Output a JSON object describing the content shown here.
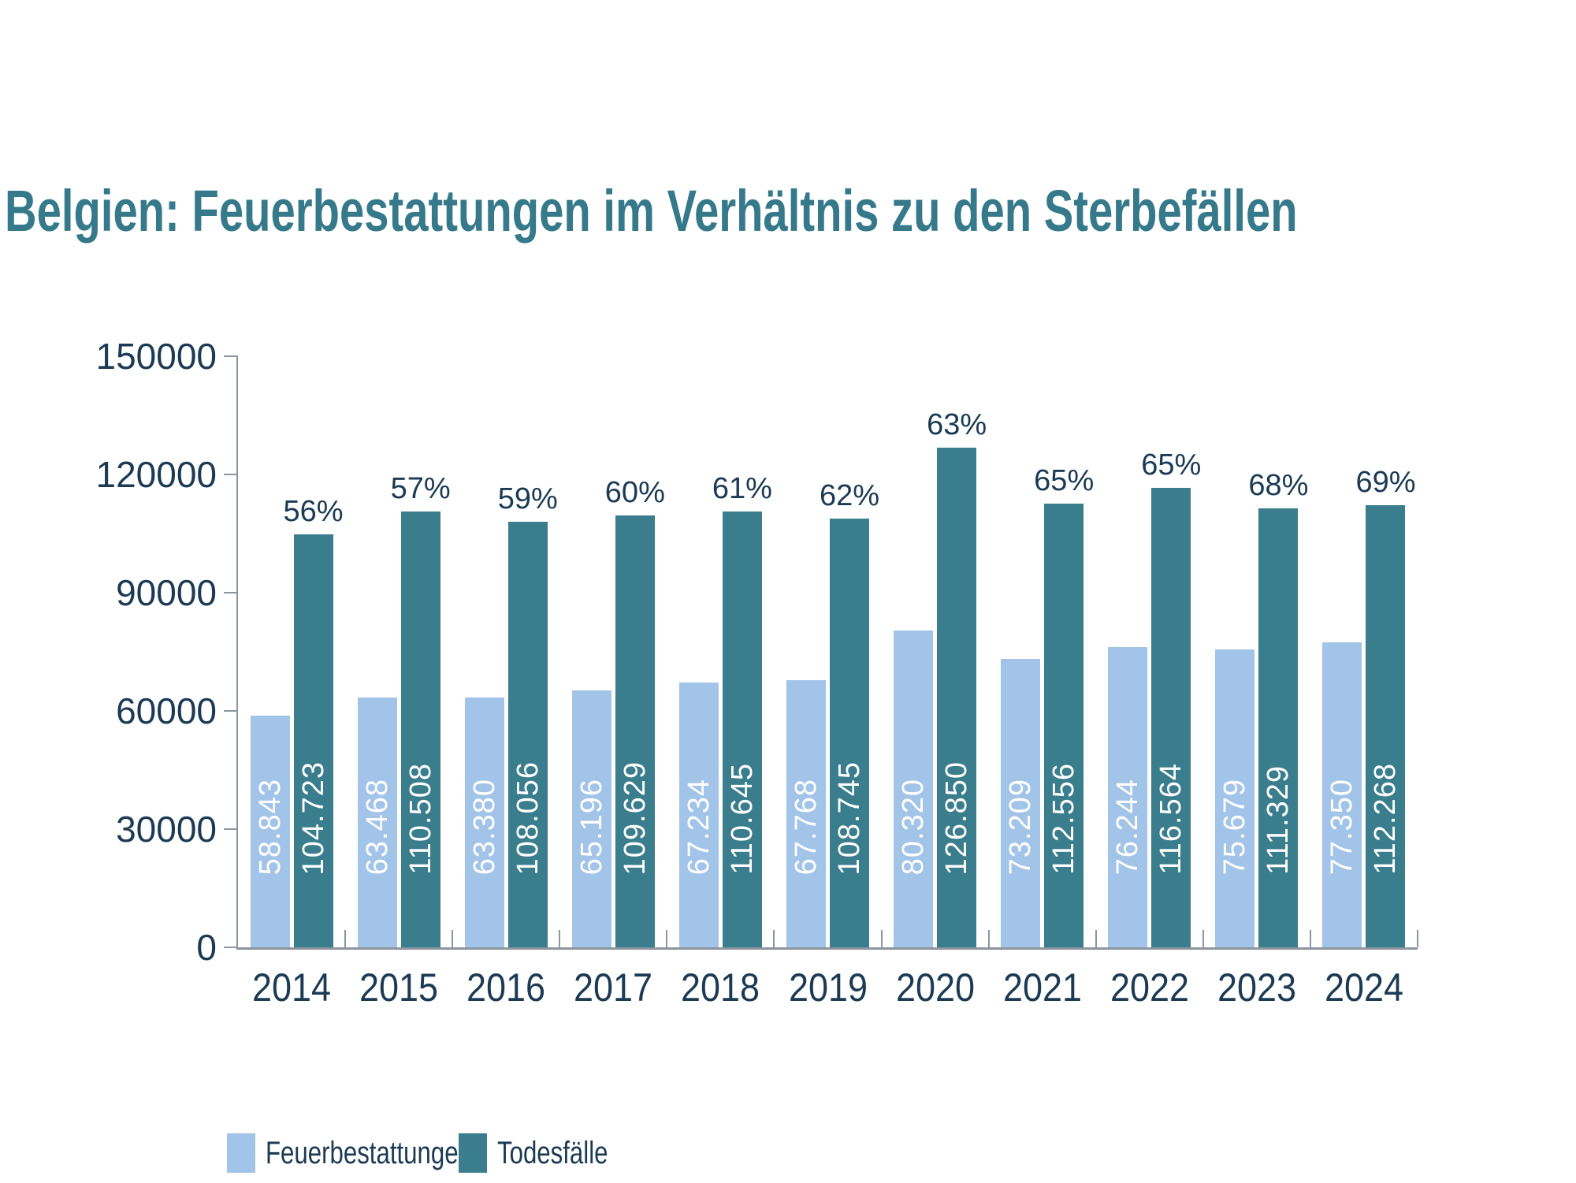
{
  "title": "Belgien: Feuerbestattungen im Verhältnis zu den Sterbefällen",
  "colors": {
    "title": "#35798B",
    "text_dark": "#1C3A54",
    "cremations": "#A2C4E8",
    "deaths": "#3A7D8D",
    "axis": "#8D959E",
    "bar_label": "#FFFFFF",
    "background": "#FFFFFF"
  },
  "legend": {
    "items": [
      {
        "label": "Feuerbestattungen",
        "series_key": "cremations"
      },
      {
        "label": "Todesfälle",
        "series_key": "deaths"
      }
    ]
  },
  "chart_data": {
    "type": "bar",
    "title": "Belgien: Feuerbestattungen im Verhältnis zu den Sterbefällen",
    "categories": [
      "2014",
      "2015",
      "2016",
      "2017",
      "2018",
      "2019",
      "2020",
      "2021",
      "2022",
      "2023",
      "2024"
    ],
    "series": [
      {
        "name": "Feuerbestattungen",
        "key": "cremations",
        "values": [
          58843,
          63468,
          63380,
          65196,
          67234,
          67768,
          80320,
          73209,
          76244,
          75679,
          77350
        ],
        "value_labels": [
          "58.843",
          "63.468",
          "63.380",
          "65.196",
          "67.234",
          "67.768",
          "80.320",
          "73.209",
          "76.244",
          "75.679",
          "77.350"
        ]
      },
      {
        "name": "Todesfälle",
        "key": "deaths",
        "values": [
          104723,
          110508,
          108056,
          109629,
          110645,
          108745,
          126850,
          112556,
          116564,
          111329,
          112268
        ],
        "value_labels": [
          "104.723",
          "110.508",
          "108.056",
          "109.629",
          "110.645",
          "108.745",
          "126.850",
          "112.556",
          "116.564",
          "111.329",
          "112.268"
        ]
      }
    ],
    "annotations": {
      "percent_labels": [
        "56%",
        "57%",
        "59%",
        "60%",
        "61%",
        "62%",
        "63%",
        "65%",
        "65%",
        "68%",
        "69%"
      ],
      "percent_labels_position": "above-deaths-bar"
    },
    "xlabel": "",
    "ylabel": "",
    "ylim": [
      0,
      150000
    ],
    "y_ticks": [
      0,
      30000,
      60000,
      90000,
      120000,
      150000
    ],
    "y_tick_labels": [
      "0",
      "30000",
      "60000",
      "90000",
      "120000",
      "150000"
    ],
    "grid": false,
    "legend_position": "bottom"
  }
}
